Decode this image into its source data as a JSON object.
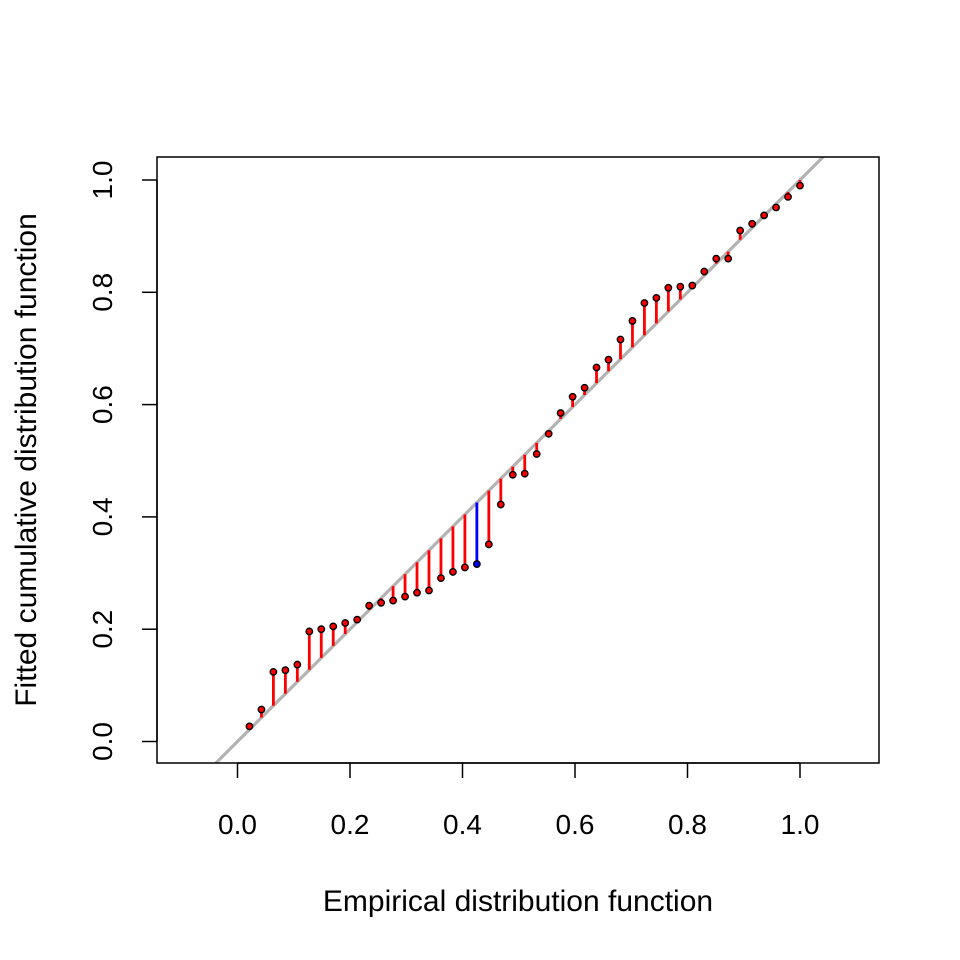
{
  "chart_data": {
    "type": "scatter",
    "xlabel": "Empirical distribution function",
    "ylabel": "Fitted cumulative distribution function",
    "xlim": [
      -0.14,
      1.14
    ],
    "ylim": [
      -0.04,
      1.04
    ],
    "xticks": [
      {
        "value": 0.0,
        "label": "0.0"
      },
      {
        "value": 0.2,
        "label": "0.2"
      },
      {
        "value": 0.4,
        "label": "0.4"
      },
      {
        "value": 0.6,
        "label": "0.6"
      },
      {
        "value": 0.8,
        "label": "0.8"
      },
      {
        "value": 1.0,
        "label": "1.0"
      }
    ],
    "yticks": [
      {
        "value": 0.0,
        "label": "0.0"
      },
      {
        "value": 0.2,
        "label": "0.2"
      },
      {
        "value": 0.4,
        "label": "0.4"
      },
      {
        "value": 0.6,
        "label": "0.6"
      },
      {
        "value": 0.8,
        "label": "0.8"
      },
      {
        "value": 1.0,
        "label": "1.0"
      }
    ],
    "reference_line": {
      "intercept": 0,
      "slope": 1,
      "color": "#b3b3b3"
    },
    "n_points": 47,
    "fitted": [
      0.027,
      0.057,
      0.124,
      0.127,
      0.137,
      0.196,
      0.2,
      0.205,
      0.211,
      0.217,
      0.242,
      0.247,
      0.251,
      0.258,
      0.265,
      0.269,
      0.291,
      0.302,
      0.31,
      0.316,
      0.351,
      0.422,
      0.475,
      0.477,
      0.512,
      0.548,
      0.585,
      0.614,
      0.63,
      0.666,
      0.68,
      0.716,
      0.749,
      0.781,
      0.79,
      0.808,
      0.81,
      0.812,
      0.837,
      0.86,
      0.86,
      0.91,
      0.922,
      0.937,
      0.951,
      0.97,
      0.99
    ],
    "max_deviation_index": 19,
    "colors": {
      "segment": "#ff0000",
      "max_segment": "#0000ff",
      "point": "#000000",
      "axis": "#000000"
    }
  }
}
